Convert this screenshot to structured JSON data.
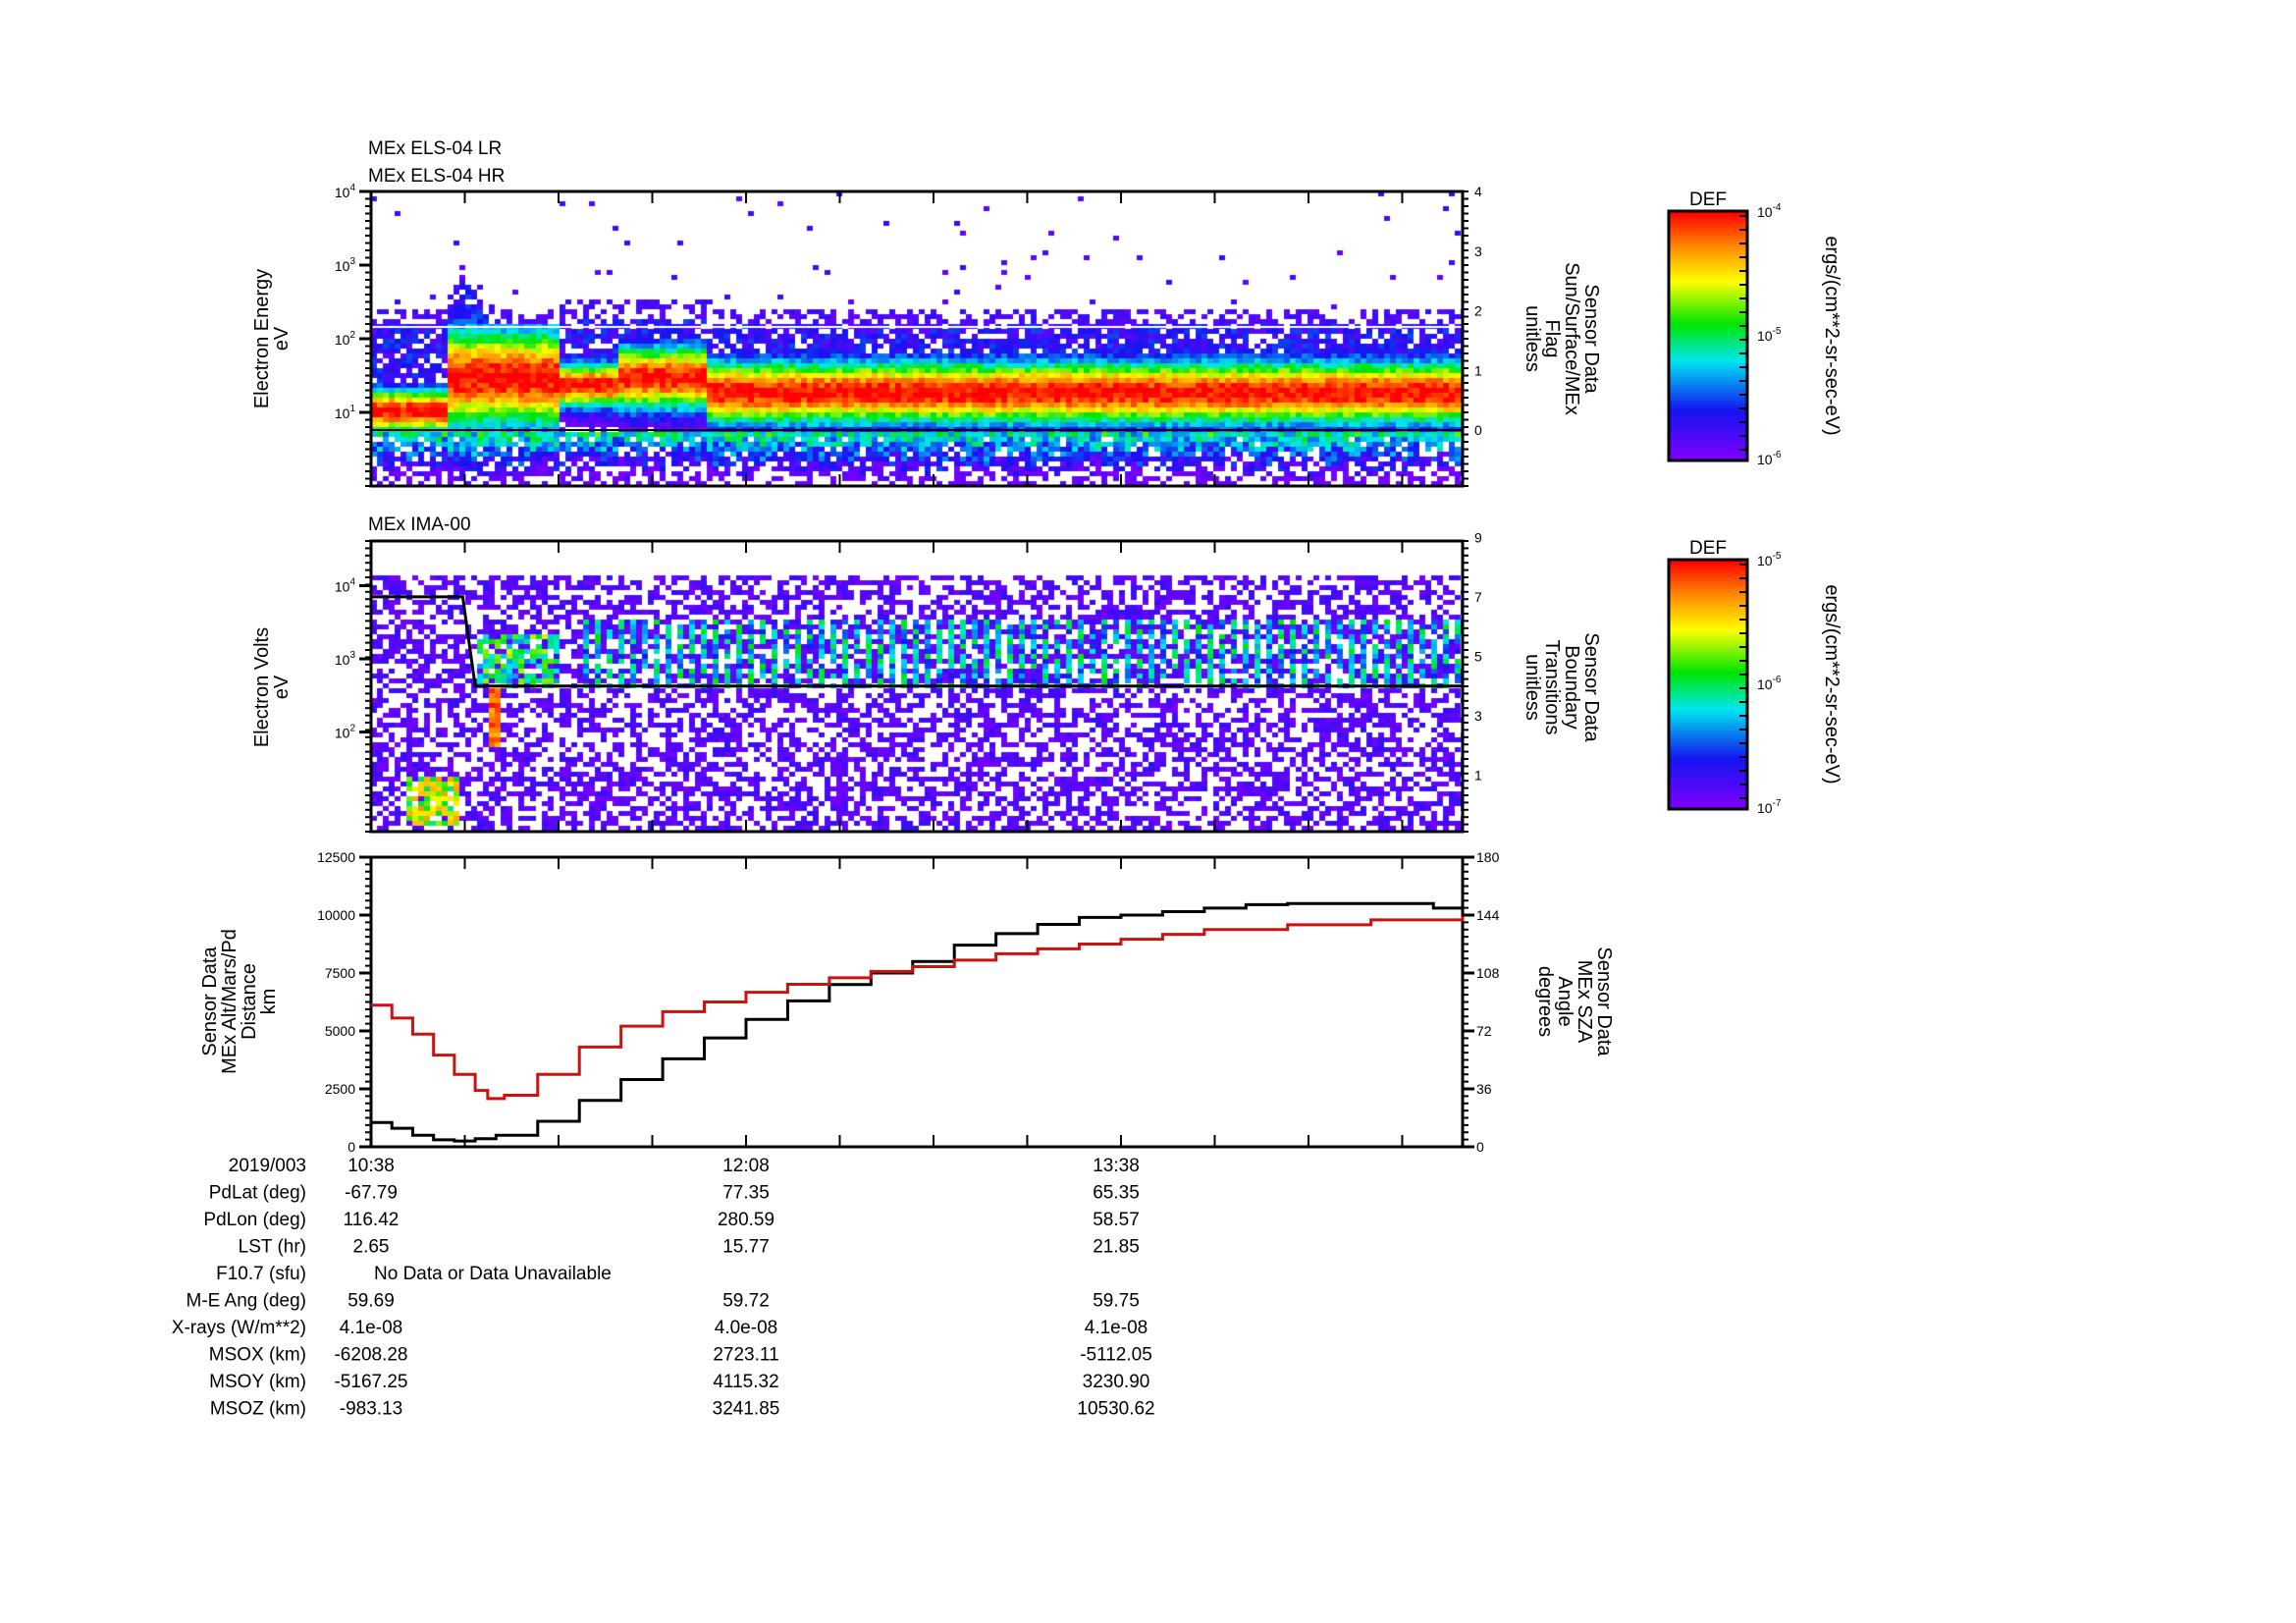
{
  "chart_data": [
    {
      "type": "heatmap",
      "titles": [
        "MEx ELS-04 LR",
        "MEx ELS-04 HR"
      ],
      "ylabel": [
        "Electron Energy",
        "eV"
      ],
      "yscale": "log",
      "ylim": [
        1,
        10000
      ],
      "yticks": [
        {
          "v": 1,
          "label": "10",
          "exp": "1"
        },
        {
          "v": 2,
          "label": "10",
          "exp": "2"
        },
        {
          "v": 3,
          "label": "10",
          "exp": "3"
        },
        {
          "v": 4,
          "label": "10",
          "exp": "4"
        }
      ],
      "y2label": [
        "Sensor Data",
        "Sun/Surface/MEx",
        "Flag",
        "unitless"
      ],
      "y2lim": [
        0,
        4
      ],
      "y2ticks": [
        "0",
        "1",
        "2",
        "3",
        "4"
      ],
      "overlay_flag_value": 0,
      "colorbar": {
        "title": "DEF",
        "units": "ergs/(cm**2-sr-sec-eV)",
        "range_exp": [
          -6,
          -4
        ],
        "ticks": [
          {
            "label": "10",
            "exp": "-4"
          },
          {
            "label": "10",
            "exp": "-5"
          },
          {
            "label": "10",
            "exp": "-6"
          }
        ]
      }
    },
    {
      "type": "heatmap",
      "titles": [
        "MEx IMA-00"
      ],
      "ylabel": [
        "Electron Volts",
        "eV"
      ],
      "yscale": "log",
      "yticks": [
        {
          "v": 2,
          "label": "10",
          "exp": "2"
        },
        {
          "v": 3,
          "label": "10",
          "exp": "3"
        },
        {
          "v": 4,
          "label": "10",
          "exp": "4"
        }
      ],
      "y2label": [
        "Sensor Data",
        "Boundary",
        "Transitions",
        "unitless"
      ],
      "y2ticks": [
        "1",
        "3",
        "5",
        "7",
        "9"
      ],
      "boundary_series": {
        "x_min": [
          0,
          22,
          25,
          262
        ],
        "y": [
          7,
          7,
          4,
          4
        ]
      },
      "colorbar": {
        "title": "DEF",
        "units": "ergs/(cm**2-sr-sec-eV)",
        "range_exp": [
          -7,
          -5
        ],
        "ticks": [
          {
            "label": "10",
            "exp": "-5"
          },
          {
            "label": "10",
            "exp": "-6"
          },
          {
            "label": "10",
            "exp": "-7"
          }
        ]
      }
    },
    {
      "type": "line",
      "ylabel": [
        "Sensor Data",
        "MEx Alt/Mars/Pd",
        "Distance",
        "km"
      ],
      "ylim": [
        0,
        12500
      ],
      "yticks": [
        "0",
        "2500",
        "5000",
        "7500",
        "10000",
        "12500"
      ],
      "y2label": [
        "Sensor Data",
        "MEx SZA",
        "Angle",
        "degrees"
      ],
      "y2lim": [
        0,
        180
      ],
      "y2ticks": [
        "0",
        "36",
        "72",
        "108",
        "144",
        "180"
      ],
      "x_unit": "minutes after 10:38",
      "xlim": [
        0,
        262
      ],
      "series": [
        {
          "name": "MEx Alt/Mars/Pd Distance (km)",
          "color": "#000000",
          "axis": "left",
          "x": [
            0,
            5,
            10,
            15,
            20,
            25,
            30,
            40,
            50,
            60,
            70,
            80,
            90,
            100,
            110,
            120,
            130,
            140,
            150,
            160,
            170,
            180,
            190,
            200,
            210,
            220,
            250,
            255,
            262
          ],
          "y": [
            1050,
            800,
            500,
            300,
            250,
            350,
            500,
            1100,
            2000,
            2900,
            3800,
            4700,
            5500,
            6300,
            7000,
            7500,
            8000,
            8700,
            9200,
            9600,
            9900,
            10000,
            10150,
            10300,
            10450,
            10500,
            10500,
            10300,
            10250
          ]
        },
        {
          "name": "MEx SZA Angle (degrees)",
          "color": "#cc1111",
          "axis": "right",
          "x": [
            0,
            5,
            10,
            15,
            20,
            25,
            28,
            32,
            40,
            50,
            60,
            70,
            80,
            90,
            100,
            110,
            120,
            130,
            140,
            150,
            160,
            170,
            180,
            190,
            200,
            220,
            240,
            262
          ],
          "y": [
            88,
            80,
            70,
            57,
            45,
            35,
            30,
            32,
            45,
            62,
            75,
            84,
            90,
            96,
            101,
            105,
            109,
            112,
            116,
            120,
            123,
            126,
            129,
            132,
            135,
            138,
            141,
            143
          ]
        }
      ]
    }
  ],
  "ephemeris": {
    "rows": [
      {
        "label": "2019/003",
        "values": [
          "10:38",
          "12:08",
          "13:38"
        ]
      },
      {
        "label": "PdLat (deg)",
        "values": [
          "-67.79",
          "77.35",
          "65.35"
        ]
      },
      {
        "label": "PdLon (deg)",
        "values": [
          "116.42",
          "280.59",
          "58.57"
        ]
      },
      {
        "label": "LST (hr)",
        "values": [
          "2.65",
          "15.77",
          "21.85"
        ]
      },
      {
        "label": "F10.7 (sfu)",
        "note": "No Data or Data Unavailable"
      },
      {
        "label": "M-E Ang (deg)",
        "values": [
          "59.69",
          "59.72",
          "59.75"
        ]
      },
      {
        "label": "X-rays (W/m**2)",
        "values": [
          "4.1e-08",
          "4.0e-08",
          "4.1e-08"
        ]
      },
      {
        "label": "MSOX (km)",
        "values": [
          "-6208.28",
          "2723.11",
          "-5112.05"
        ]
      },
      {
        "label": "MSOY (km)",
        "values": [
          "-5167.25",
          "4115.32",
          "3230.90"
        ]
      },
      {
        "label": "MSOZ (km)",
        "values": [
          "-983.13",
          "3241.85",
          "10530.62"
        ]
      }
    ]
  },
  "colors": {
    "sza": "#cc1111",
    "axis": "#000000"
  }
}
